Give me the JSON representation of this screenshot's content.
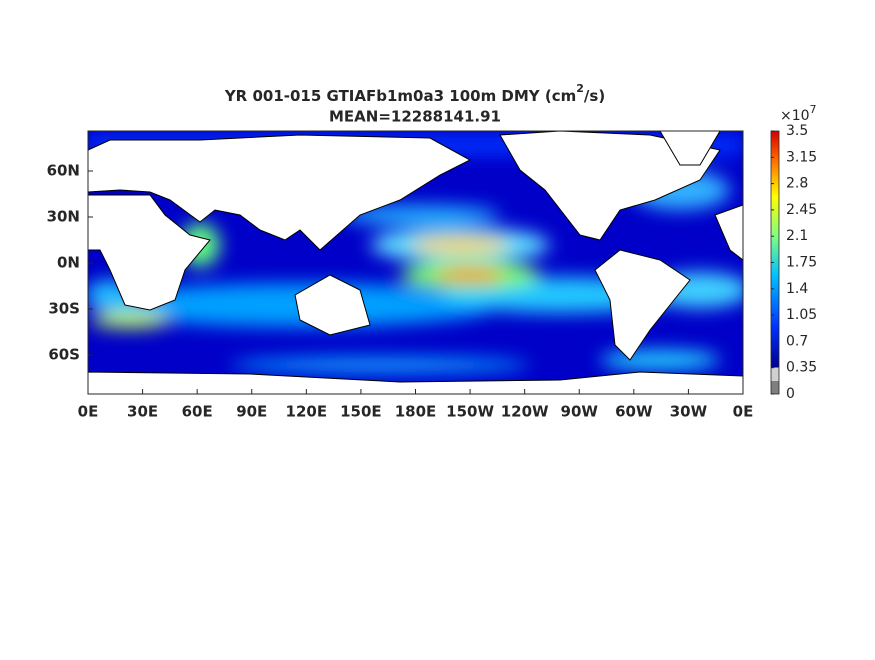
{
  "title": {
    "line1": {
      "text": "YR 001-015 GTIAFb1m0a3 100m DMY (cm",
      "superscript": "2",
      "suffix": "/s)"
    },
    "line2": "MEAN=12288141.91"
  },
  "map": {
    "x_tick_labels": [
      "0E",
      "30E",
      "60E",
      "90E",
      "120E",
      "150E",
      "180E",
      "150W",
      "120W",
      "90W",
      "60W",
      "30W",
      "0E"
    ],
    "y_tick_labels": [
      "60N",
      "30N",
      "0N",
      "30S",
      "60S"
    ]
  },
  "colorbar": {
    "multiplier": {
      "base": "×10",
      "exponent": "7"
    },
    "lim": [
      0,
      3.5
    ],
    "ticks": [
      0,
      0.35,
      0.7,
      1.05,
      1.4,
      1.75,
      2.1,
      2.45,
      2.8,
      3.15,
      3.5
    ]
  }
}
